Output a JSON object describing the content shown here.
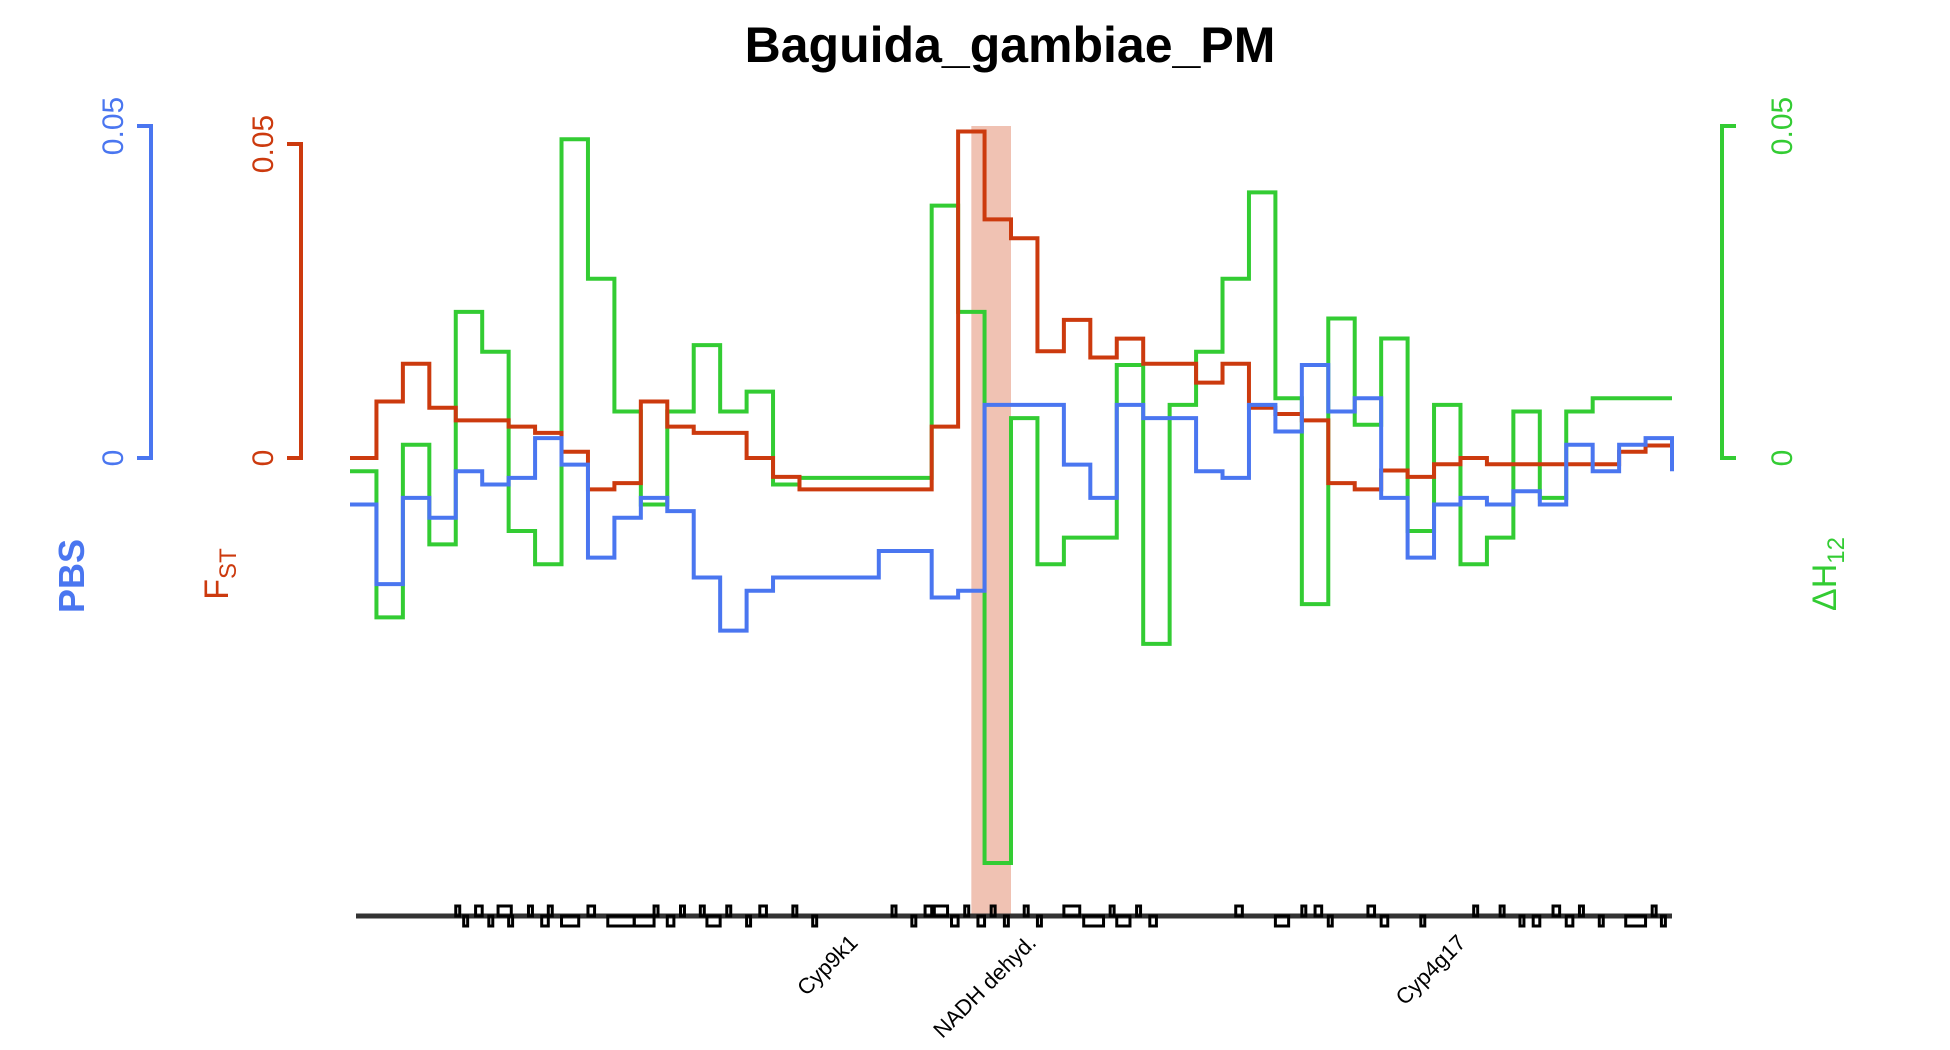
{
  "chart_data": {
    "type": "line",
    "title": "Baguida_gambiae_PM",
    "line_style": "step",
    "colors": {
      "pbs": "#4A76F0",
      "fst": "#CC3A0E",
      "dh12": "#33CC33",
      "highlight": "#F0C2B3",
      "genes": "#000000"
    },
    "axes": {
      "pbs": {
        "label": "PBS",
        "ticks": [
          "0",
          "0.05"
        ],
        "range": [
          0,
          0.05
        ]
      },
      "fst": {
        "label_main": "F",
        "label_sub": "ST",
        "ticks": [
          "0",
          "0.05"
        ],
        "range": [
          0,
          0.05
        ]
      },
      "dh12": {
        "label_main": "ΔH",
        "label_sub": "12",
        "ticks": [
          "0",
          "0.05"
        ],
        "range": [
          0,
          0.05
        ]
      }
    },
    "x": [
      0,
      2,
      4,
      6,
      8,
      10,
      12,
      14,
      16,
      18,
      20,
      22,
      24,
      26,
      28,
      30,
      32,
      34,
      36,
      38,
      40,
      42,
      44,
      46,
      48,
      50,
      52,
      54,
      56,
      58,
      60,
      62,
      64,
      66,
      68,
      70,
      72,
      74,
      76,
      78,
      80,
      82,
      84,
      86,
      88,
      90,
      92,
      94,
      96,
      98,
      100
    ],
    "highlight_x": [
      47,
      50
    ],
    "series": [
      {
        "key": "pbs",
        "values": [
          -0.007,
          -0.019,
          -0.006,
          -0.009,
          -0.002,
          -0.004,
          -0.003,
          0.003,
          -0.001,
          -0.015,
          -0.009,
          -0.006,
          -0.008,
          -0.018,
          -0.026,
          -0.02,
          -0.018,
          -0.018,
          -0.018,
          -0.018,
          -0.014,
          -0.014,
          -0.021,
          -0.02,
          0.008,
          0.008,
          0.008,
          -0.001,
          -0.006,
          0.008,
          0.006,
          0.006,
          -0.002,
          -0.003,
          0.008,
          0.004,
          0.014,
          0.007,
          0.009,
          -0.006,
          -0.015,
          -0.007,
          -0.006,
          -0.007,
          -0.005,
          -0.007,
          0.002,
          -0.002,
          0.002,
          0.003,
          -0.002
        ]
      },
      {
        "key": "fst",
        "values": [
          0,
          0.009,
          0.015,
          0.008,
          0.006,
          0.006,
          0.005,
          0.004,
          0.001,
          -0.005,
          -0.004,
          0.009,
          0.005,
          0.004,
          0.004,
          0,
          -0.003,
          -0.005,
          -0.005,
          -0.005,
          -0.005,
          -0.005,
          0.005,
          0.052,
          0.038,
          0.035,
          0.017,
          0.022,
          0.016,
          0.019,
          0.015,
          0.015,
          0.012,
          0.015,
          0.008,
          0.007,
          0.006,
          -0.004,
          -0.005,
          -0.002,
          -0.003,
          -0.001,
          0,
          -0.001,
          -0.001,
          -0.001,
          -0.001,
          -0.001,
          0.001,
          0.002,
          0.001
        ]
      },
      {
        "key": "dh12",
        "values": [
          -0.002,
          -0.024,
          0.002,
          -0.013,
          0.022,
          0.016,
          -0.011,
          -0.016,
          0.048,
          0.027,
          0.007,
          -0.007,
          0.007,
          0.017,
          0.007,
          0.01,
          -0.004,
          -0.003,
          -0.003,
          -0.003,
          -0.003,
          -0.003,
          0.038,
          0.022,
          -0.061,
          0.006,
          -0.016,
          -0.012,
          -0.012,
          0.014,
          -0.028,
          0.008,
          0.016,
          0.027,
          0.04,
          0.009,
          -0.022,
          0.021,
          0.005,
          0.018,
          -0.011,
          0.008,
          -0.016,
          -0.012,
          0.007,
          -0.006,
          0.007,
          0.009,
          0.009,
          0.009,
          0.009
        ]
      }
    ],
    "gene_labels": [
      {
        "text": "Cyp9k1",
        "x": 38.5
      },
      {
        "text": "NADH dehyd.",
        "x": 52.0
      },
      {
        "text": "Cyp4g17",
        "x": 84.5
      }
    ],
    "genes": [
      [
        8,
        0.3,
        1
      ],
      [
        8.6,
        0.3,
        -1
      ],
      [
        9.5,
        0.5,
        1
      ],
      [
        10.5,
        0.3,
        -1
      ],
      [
        11.2,
        1.0,
        1
      ],
      [
        12,
        0.3,
        -1
      ],
      [
        13.5,
        0.3,
        1
      ],
      [
        14.5,
        0.5,
        -1
      ],
      [
        15,
        0.3,
        1
      ],
      [
        16,
        1.3,
        -1
      ],
      [
        18,
        0.5,
        1
      ],
      [
        19.5,
        2.0,
        -1
      ],
      [
        21.5,
        1.5,
        -1
      ],
      [
        23,
        0.3,
        1
      ],
      [
        24,
        0.5,
        -1
      ],
      [
        25,
        0.3,
        1
      ],
      [
        26.5,
        0.3,
        1
      ],
      [
        27,
        1.0,
        -1
      ],
      [
        28.5,
        0.3,
        1
      ],
      [
        30,
        0.3,
        -1
      ],
      [
        31,
        0.5,
        1
      ],
      [
        33.5,
        0.3,
        1
      ],
      [
        35,
        0.3,
        -1
      ],
      [
        41,
        0.3,
        1
      ],
      [
        42.5,
        0.3,
        -1
      ],
      [
        43.5,
        0.5,
        1
      ],
      [
        44.2,
        1.0,
        1
      ],
      [
        45.5,
        0.5,
        -1
      ],
      [
        46.5,
        0.3,
        1
      ],
      [
        47.5,
        0.5,
        -1
      ],
      [
        48.5,
        0.3,
        1
      ],
      [
        49.5,
        0.3,
        -1
      ],
      [
        51,
        0.3,
        1
      ],
      [
        52,
        0.3,
        -1
      ],
      [
        54,
        1.2,
        1
      ],
      [
        55.5,
        1.5,
        -1
      ],
      [
        57.5,
        0.3,
        1
      ],
      [
        58,
        1.0,
        -1
      ],
      [
        59.5,
        0.3,
        1
      ],
      [
        60.5,
        0.5,
        -1
      ],
      [
        67,
        0.5,
        1
      ],
      [
        70,
        1.0,
        -1
      ],
      [
        72,
        0.3,
        1
      ],
      [
        73,
        0.5,
        1
      ],
      [
        74,
        0.3,
        -1
      ],
      [
        77,
        0.5,
        1
      ],
      [
        78,
        0.5,
        -1
      ],
      [
        81,
        0.3,
        -1
      ],
      [
        85,
        0.3,
        1
      ],
      [
        87,
        0.3,
        1
      ],
      [
        88.5,
        0.3,
        -1
      ],
      [
        89.5,
        0.5,
        -1
      ],
      [
        91,
        0.5,
        1
      ],
      [
        92,
        0.5,
        -1
      ],
      [
        93,
        0.3,
        1
      ],
      [
        94.5,
        0.3,
        -1
      ],
      [
        96.5,
        1.5,
        -1
      ],
      [
        98.5,
        0.3,
        1
      ],
      [
        99.2,
        0.3,
        -1
      ]
    ]
  }
}
